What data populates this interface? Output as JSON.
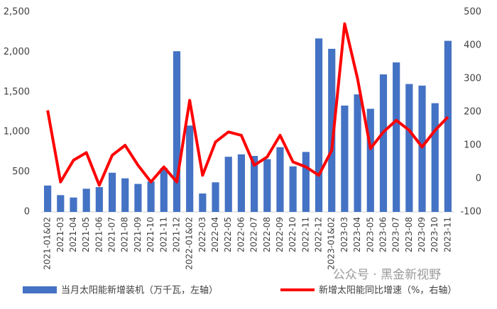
{
  "chart_data": {
    "type": "bar_line",
    "categories": [
      "2021-01&02",
      "2021-03",
      "2021-04",
      "2021-05",
      "2021-06",
      "2021-07",
      "2021-08",
      "2021-09",
      "2021-10",
      "2021-11",
      "2021-12",
      "2022-01&02",
      "2022-03",
      "2022-04",
      "2022-05",
      "2022-06",
      "2022-07",
      "2022-08",
      "2022-09",
      "2022-10",
      "2022-11",
      "2022-12",
      "2023-01&02",
      "2023-03",
      "2023-04",
      "2023-05",
      "2023-06",
      "2023-07",
      "2023-08",
      "2023-09",
      "2023-10",
      "2023-11"
    ],
    "series": [
      {
        "name": "当月太阳能新增装机（万千瓦，左轴）",
        "type": "bar",
        "color": "#4472c4",
        "values": [
          330,
          210,
          180,
          290,
          310,
          490,
          420,
          350,
          380,
          550,
          2010,
          1080,
          230,
          370,
          690,
          720,
          700,
          660,
          810,
          570,
          750,
          2170,
          2040,
          1330,
          1470,
          1290,
          1720,
          1870,
          1600,
          1580,
          1360,
          2140
        ]
      },
      {
        "name": "新增太阳能同比增速（%，右轴）",
        "type": "line",
        "axis": "y2",
        "color": "#ff0000",
        "values": [
          205,
          -10,
          55,
          78,
          -20,
          70,
          100,
          40,
          -10,
          35,
          -10,
          235,
          10,
          110,
          140,
          130,
          40,
          65,
          130,
          50,
          35,
          10,
          85,
          465,
          300,
          90,
          140,
          175,
          145,
          95,
          145,
          185
        ]
      }
    ],
    "ylim": [
      0,
      2500
    ],
    "yticks": [
      0,
      500,
      {
        "value": 1000,
        "label": "1,000"
      },
      {
        "value": 1500,
        "label": "1,500"
      },
      {
        "value": 2000,
        "label": "2,000"
      },
      {
        "value": 2500,
        "label": "2,500"
      }
    ],
    "y2lim": [
      -100,
      500
    ],
    "y2ticks": [
      -100,
      0,
      100,
      200,
      300,
      400,
      500
    ],
    "watermark": "公众号 · 黑金新视野"
  }
}
